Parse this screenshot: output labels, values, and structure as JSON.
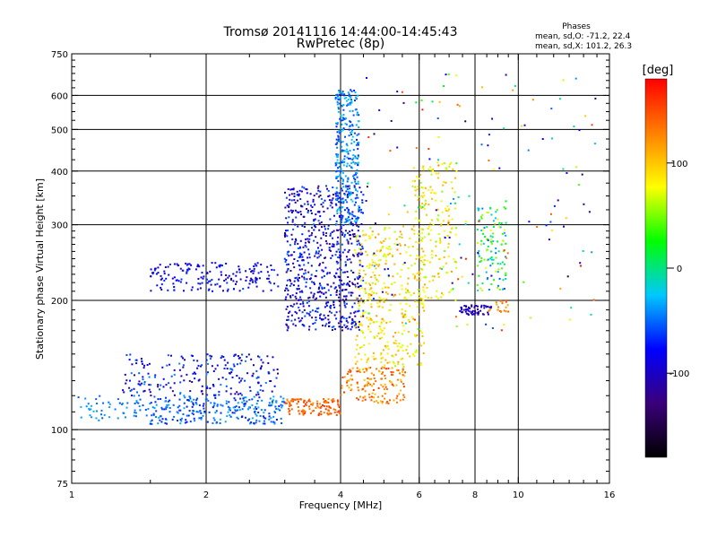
{
  "chart_data": {
    "type": "scatter",
    "title": "Tromsø 20141116 14:44:00-14:45:43",
    "subtitle": "RwPretec (8p)",
    "xlabel": "Frequency [MHz]",
    "ylabel": "Stationary phase Virtual Height [km]",
    "x_scale": "log",
    "y_scale": "log",
    "xlim": [
      1,
      16
    ],
    "ylim": [
      75,
      750
    ],
    "x_ticks": [
      1,
      2,
      4,
      6,
      8,
      10,
      16
    ],
    "y_ticks": [
      75,
      100,
      200,
      300,
      400,
      500,
      600,
      750
    ],
    "grid": true,
    "phase_info": {
      "title": "Phases",
      "line_o": "mean, sd,O: -71.2, 22.4",
      "line_x": "mean, sd,X: 101.2, 26.3"
    },
    "colorbar": {
      "label": "[deg]",
      "range": [
        -180,
        180
      ],
      "ticks": [
        100,
        0,
        -100
      ],
      "colors": [
        "#000000",
        "#3a007a",
        "#0000ff",
        "#00c8ff",
        "#00ff00",
        "#ffff00",
        "#ff8000",
        "#ff0000"
      ]
    },
    "series": [
      {
        "x_range": [
          1.0,
          1.5
        ],
        "y_range": [
          105,
          120
        ],
        "phase_range": [
          -60,
          -30
        ],
        "count": 60
      },
      {
        "x_range": [
          1.5,
          3.0
        ],
        "y_range": [
          103,
          120
        ],
        "phase_range": [
          -75,
          -30
        ],
        "count": 260
      },
      {
        "x_range": [
          1.5,
          2.9
        ],
        "y_range": [
          210,
          245
        ],
        "phase_range": [
          -110,
          -60
        ],
        "count": 180
      },
      {
        "x_range": [
          1.3,
          2.9
        ],
        "y_range": [
          120,
          150
        ],
        "phase_range": [
          -120,
          -40
        ],
        "count": 220
      },
      {
        "x_range": [
          3.0,
          4.0
        ],
        "y_range": [
          108,
          118
        ],
        "phase_range": [
          120,
          160
        ],
        "count": 120
      },
      {
        "x_range": [
          4.0,
          5.6
        ],
        "y_range": [
          115,
          140
        ],
        "phase_range": [
          100,
          160
        ],
        "count": 150
      },
      {
        "x_range": [
          3.0,
          4.5
        ],
        "y_range": [
          170,
          370
        ],
        "phase_range": [
          -130,
          -50
        ],
        "count": 700
      },
      {
        "x_range": [
          3.9,
          4.4
        ],
        "y_range": [
          300,
          620
        ],
        "phase_range": [
          -70,
          -20
        ],
        "count": 320
      },
      {
        "x_range": [
          4.3,
          6.2
        ],
        "y_range": [
          140,
          300
        ],
        "phase_range": [
          60,
          120
        ],
        "count": 380
      },
      {
        "x_range": [
          5.8,
          7.3
        ],
        "y_range": [
          200,
          420
        ],
        "phase_range": [
          50,
          110
        ],
        "count": 180
      },
      {
        "x_range": [
          7.4,
          8.7
        ],
        "y_range": [
          185,
          195
        ],
        "phase_range": [
          -120,
          -90
        ],
        "count": 60
      },
      {
        "x_range": [
          8.5,
          9.5
        ],
        "y_range": [
          188,
          200
        ],
        "phase_range": [
          110,
          150
        ],
        "count": 20
      },
      {
        "x_range": [
          8.1,
          9.4
        ],
        "y_range": [
          210,
          330
        ],
        "phase_range": [
          -60,
          80
        ],
        "count": 120
      },
      {
        "x_range": [
          4.5,
          15.0
        ],
        "y_range": [
          170,
          680
        ],
        "phase_range": [
          -150,
          170
        ],
        "count": 160
      }
    ]
  }
}
